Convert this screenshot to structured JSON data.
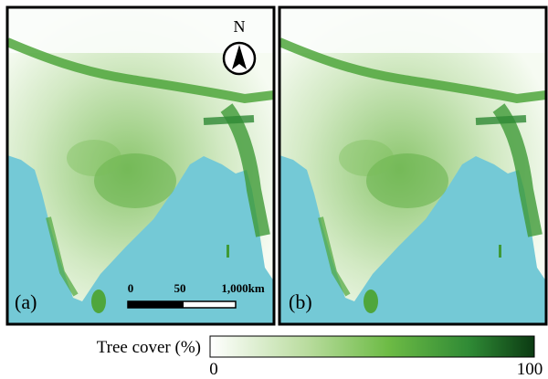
{
  "panels": [
    {
      "label": "(a)"
    },
    {
      "label": "(b)"
    }
  ],
  "north_arrow": "N",
  "scale_bar": {
    "labels": [
      "0",
      "50",
      "1,000km"
    ]
  },
  "legend": {
    "title": "Tree cover (%)",
    "min_label": "0",
    "max_label": "100"
  }
}
